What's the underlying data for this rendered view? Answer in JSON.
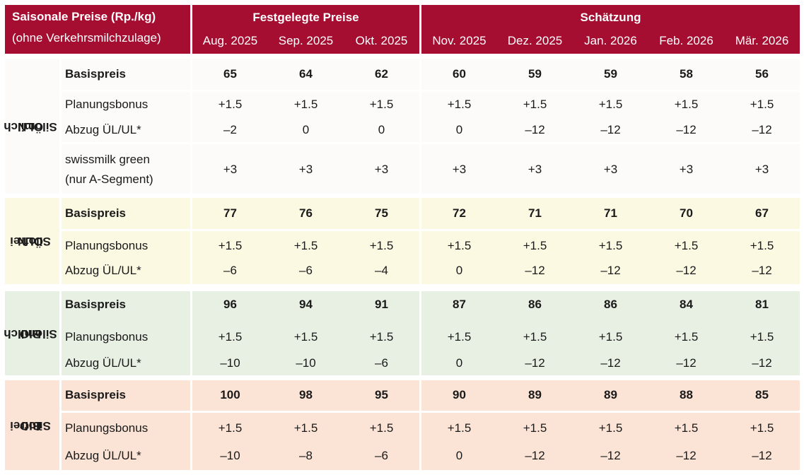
{
  "header": {
    "left_title": "Saisonale Preise (Rp./kg)",
    "left_subtitle": "(ohne Verkehrsmilchzulage)",
    "fixed_title": "Festgelegte Preise",
    "estimate_title": "Schätzung",
    "months": [
      "Aug. 2025",
      "Sep. 2025",
      "Okt. 2025",
      "Nov. 2025",
      "Dez. 2025",
      "Jan. 2026",
      "Feb. 2026",
      "Mär. 2026"
    ]
  },
  "groups": [
    {
      "label_line1": "ÖLN",
      "label_line2": "Silomilch",
      "color": "#fcfbfa",
      "rows": [
        {
          "label": "Basispreis",
          "bold": true,
          "values": [
            "65",
            "64",
            "62",
            "60",
            "59",
            "59",
            "58",
            "56"
          ]
        },
        {
          "label": "Planungsbonus",
          "values": [
            "+1.5",
            "+1.5",
            "+1.5",
            "+1.5",
            "+1.5",
            "+1.5",
            "+1.5",
            "+1.5"
          ]
        },
        {
          "label": "Abzug ÜL/UL*",
          "values": [
            "–2",
            "0",
            "0",
            "0",
            "–12",
            "–12",
            "–12",
            "–12"
          ]
        },
        {
          "label": "swissmilk green",
          "label2": "(nur A-Segment)",
          "values": [
            "+3",
            "+3",
            "+3",
            "+3",
            "+3",
            "+3",
            "+3",
            "+3"
          ]
        }
      ]
    },
    {
      "label_line1": "ÖLN",
      "label_line2": "Silofrei",
      "color": "#fcf9e3",
      "rows": [
        {
          "label": "Basispreis",
          "bold": true,
          "values": [
            "77",
            "76",
            "75",
            "72",
            "71",
            "71",
            "70",
            "67"
          ]
        },
        {
          "label": "Planungsbonus",
          "values": [
            "+1.5",
            "+1.5",
            "+1.5",
            "+1.5",
            "+1.5",
            "+1.5",
            "+1.5",
            "+1.5"
          ]
        },
        {
          "label": "Abzug ÜL/UL*",
          "values": [
            "–6",
            "–6",
            "–4",
            "0",
            "–12",
            "–12",
            "–12",
            "–12"
          ]
        }
      ]
    },
    {
      "label_line1": "BIO",
      "label_line2": "Silomilch",
      "color": "#e8f0e4",
      "rows": [
        {
          "label": "Basispreis",
          "bold": true,
          "values": [
            "96",
            "94",
            "91",
            "87",
            "86",
            "86",
            "84",
            "81"
          ]
        },
        {
          "label": "Planungsbonus",
          "values": [
            "+1.5",
            "+1.5",
            "+1.5",
            "+1.5",
            "+1.5",
            "+1.5",
            "+1.5",
            "+1.5"
          ]
        },
        {
          "label": "Abzug ÜL/UL*",
          "values": [
            "–10",
            "–10",
            "–6",
            "0",
            "–12",
            "–12",
            "–12",
            "–12"
          ]
        }
      ]
    },
    {
      "label_line1": "BIO",
      "label_line2": "Silofrei",
      "color": "#fbe4d6",
      "rows": [
        {
          "label": "Basispreis",
          "bold": true,
          "values": [
            "100",
            "98",
            "95",
            "90",
            "89",
            "89",
            "88",
            "85"
          ]
        },
        {
          "label": "Planungsbonus",
          "values": [
            "+1.5",
            "+1.5",
            "+1.5",
            "+1.5",
            "+1.5",
            "+1.5",
            "+1.5",
            "+1.5"
          ]
        },
        {
          "label": "Abzug ÜL/UL*",
          "values": [
            "–10",
            "–8",
            "–6",
            "0",
            "–12",
            "–12",
            "–12",
            "–12"
          ]
        }
      ]
    }
  ]
}
